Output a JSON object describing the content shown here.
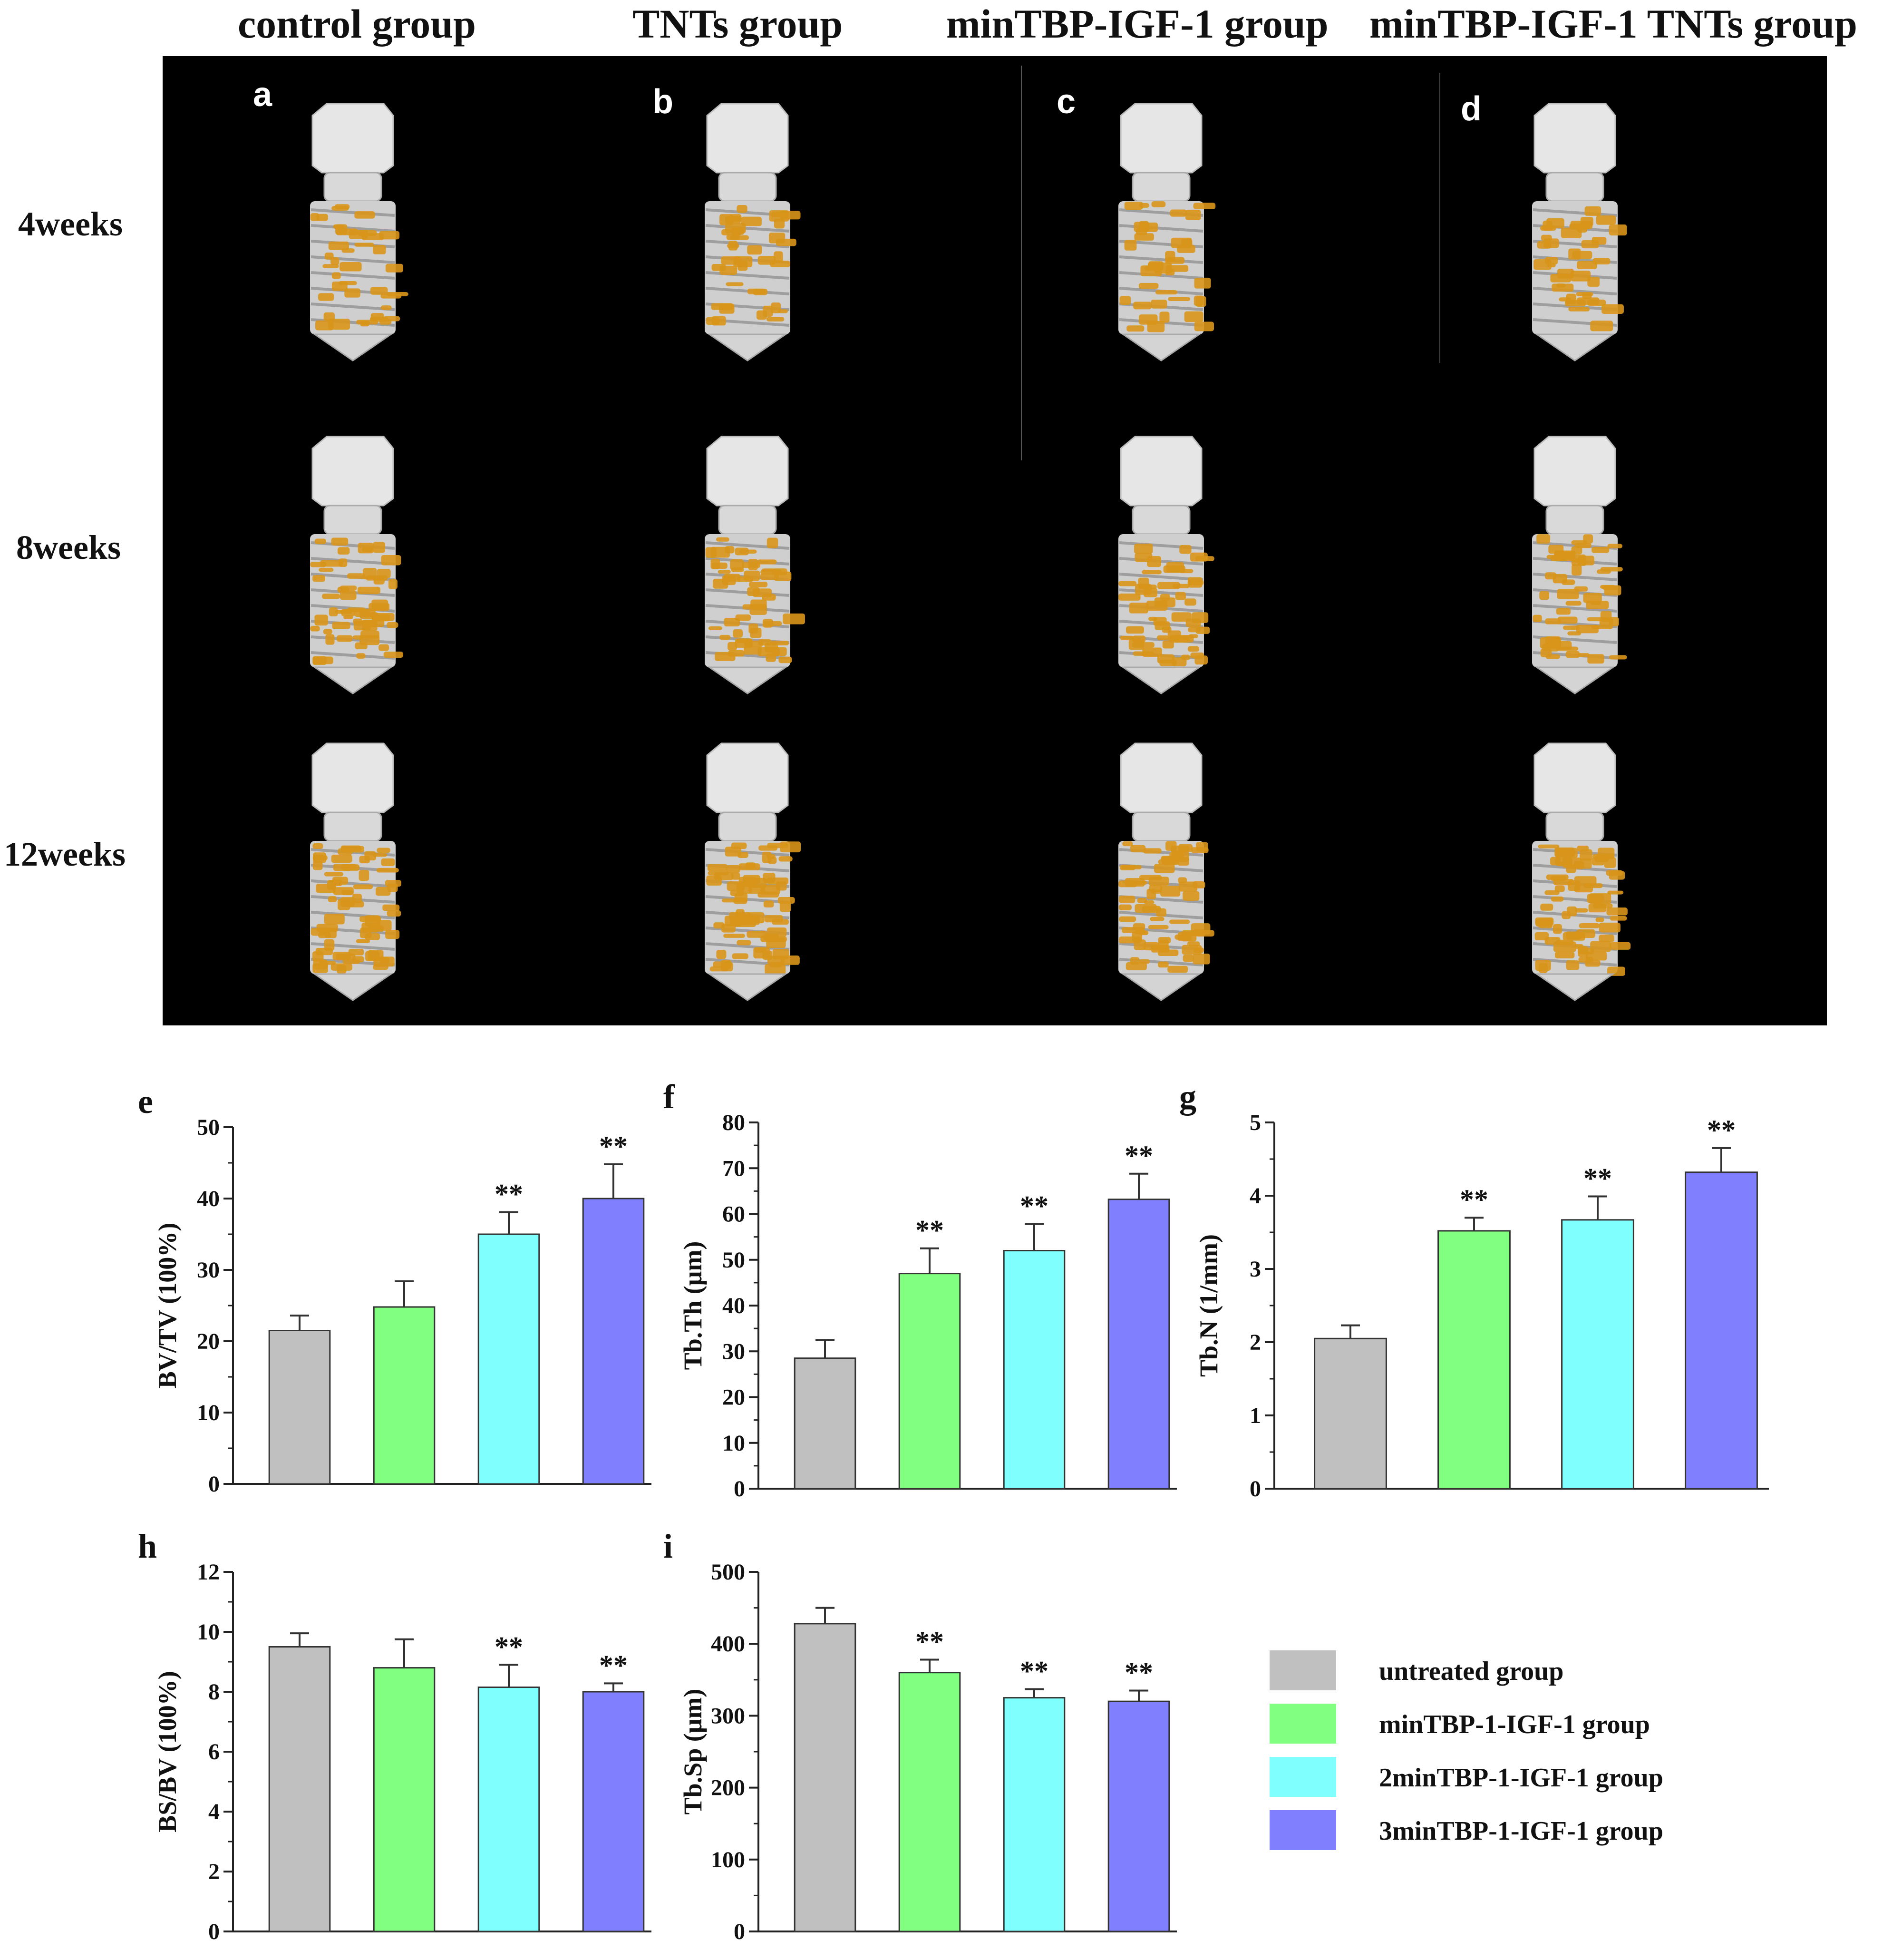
{
  "figure": {
    "column_titles": [
      "control group",
      "TNTs group",
      "minTBP-IGF-1 group",
      "minTBP-IGF-1 TNTs group"
    ],
    "row_labels": [
      "4weeks",
      "8weeks",
      "12weeks"
    ],
    "panel_letters": [
      "a",
      "b",
      "c",
      "d"
    ]
  },
  "colors": {
    "untreated": "#c0c0c0",
    "min1": "#80ff80",
    "min2": "#80ffff",
    "min3": "#8080ff",
    "bone": "#d8951a",
    "implant": "#e6e6e6"
  },
  "legend": [
    {
      "label": "untreated group",
      "color": "#c0c0c0"
    },
    {
      "label": "minTBP-1-IGF-1 group",
      "color": "#80ff80"
    },
    {
      "label": "2minTBP-1-IGF-1 group",
      "color": "#80ffff"
    },
    {
      "label": "3minTBP-1-IGF-1 group",
      "color": "#8080ff"
    }
  ],
  "chart_data": [
    {
      "id": "e",
      "type": "bar",
      "title": "",
      "xlabel": "",
      "ylabel": "BV/TV (100%)",
      "categories": [
        "untreated group",
        "minTBP-1-IGF-1 group",
        "2minTBP-1-IGF-1 group",
        "3minTBP-1-IGF-1 group"
      ],
      "values": [
        21.5,
        24.8,
        35,
        40
      ],
      "errors": [
        2.1,
        3.6,
        3.1,
        4.8
      ],
      "sig": [
        "",
        "",
        "**",
        "**"
      ],
      "ylim": [
        0,
        50
      ],
      "yticks": [
        0,
        10,
        20,
        30,
        40,
        50
      ]
    },
    {
      "id": "f",
      "type": "bar",
      "title": "",
      "xlabel": "",
      "ylabel": "Tb.Th (μm)",
      "categories": [
        "untreated group",
        "minTBP-1-IGF-1 group",
        "2minTBP-1-IGF-1 group",
        "3minTBP-1-IGF-1 group"
      ],
      "values": [
        28.5,
        47,
        52,
        63.2
      ],
      "errors": [
        4,
        5.5,
        5.8,
        5.6
      ],
      "sig": [
        "",
        "**",
        "**",
        "**"
      ],
      "ylim": [
        0,
        80
      ],
      "yticks": [
        0,
        10,
        20,
        30,
        40,
        50,
        60,
        70,
        80
      ]
    },
    {
      "id": "g",
      "type": "bar",
      "title": "",
      "xlabel": "",
      "ylabel": "Tb.N (1/mm)",
      "categories": [
        "untreated group",
        "minTBP-1-IGF-1 group",
        "2minTBP-1-IGF-1 group",
        "3minTBP-1-IGF-1 group"
      ],
      "values": [
        2.05,
        3.52,
        3.67,
        4.32
      ],
      "errors": [
        0.18,
        0.18,
        0.32,
        0.33
      ],
      "sig": [
        "",
        "**",
        "**",
        "**"
      ],
      "ylim": [
        0,
        5
      ],
      "yticks": [
        0,
        1,
        2,
        3,
        4,
        5
      ]
    },
    {
      "id": "h",
      "type": "bar",
      "title": "",
      "xlabel": "",
      "ylabel": "BS/BV (100%)",
      "categories": [
        "untreated group",
        "minTBP-1-IGF-1 group",
        "2minTBP-1-IGF-1 group",
        "3minTBP-1-IGF-1 group"
      ],
      "values": [
        9.5,
        8.8,
        8.15,
        8.0
      ],
      "errors": [
        0.45,
        0.95,
        0.75,
        0.28
      ],
      "sig": [
        "",
        "",
        "**",
        "**"
      ],
      "ylim": [
        0,
        12
      ],
      "yticks": [
        0,
        2,
        4,
        6,
        8,
        10,
        12
      ]
    },
    {
      "id": "i",
      "type": "bar",
      "title": "",
      "xlabel": "",
      "ylabel": "Tb.Sp (μm)",
      "categories": [
        "untreated group",
        "minTBP-1-IGF-1 group",
        "2minTBP-1-IGF-1 group",
        "3minTBP-1-IGF-1 group"
      ],
      "values": [
        428,
        360,
        325,
        320
      ],
      "errors": [
        22,
        18,
        12,
        15
      ],
      "sig": [
        "",
        "**",
        "**",
        "**"
      ],
      "ylim": [
        0,
        500
      ],
      "yticks": [
        0,
        100,
        200,
        300,
        400,
        500
      ]
    }
  ]
}
